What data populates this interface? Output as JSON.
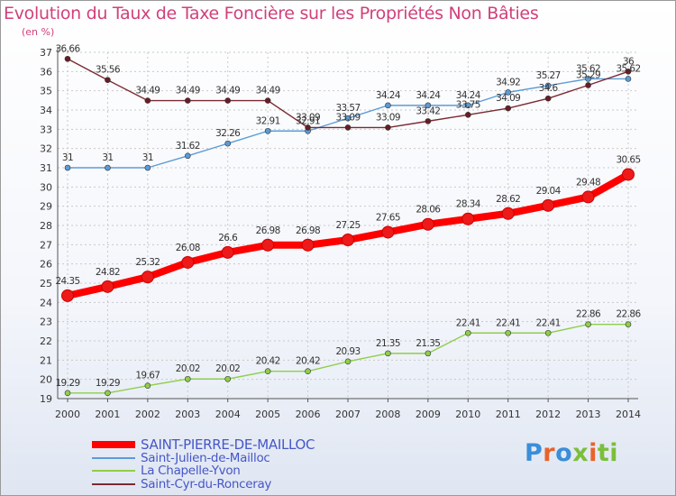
{
  "chart_data": {
    "type": "line",
    "title": "Evolution du Taux de Taxe Foncière sur les Propriétés Non Bâties",
    "unit_label": "(en %)",
    "x": [
      "2000",
      "2001",
      "2002",
      "2003",
      "2004",
      "2005",
      "2006",
      "2007",
      "2008",
      "2009",
      "2010",
      "2011",
      "2012",
      "2013",
      "2014"
    ],
    "yticks": [
      "19",
      "20",
      "21",
      "22",
      "23",
      "24",
      "25",
      "26",
      "27",
      "28",
      "29",
      "30",
      "31",
      "32",
      "33",
      "34",
      "35",
      "36",
      "37"
    ],
    "ylim": [
      19,
      37
    ],
    "grid": true,
    "series": [
      {
        "name": "SAINT-PIERRE-DE-MAILLOC",
        "color": "#ff0000",
        "values": [
          24.35,
          24.82,
          25.32,
          26.08,
          26.6,
          26.98,
          26.98,
          27.25,
          27.65,
          28.06,
          28.34,
          28.62,
          29.04,
          29.48,
          30.65
        ],
        "labels": [
          "24.35",
          "24.82",
          "25.32",
          "26.08",
          "26.6",
          "26.98",
          "26.98",
          "27.25",
          "27.65",
          "28.06",
          "28.34",
          "28.62",
          "29.04",
          "29.48",
          "30.65"
        ]
      },
      {
        "name": "Saint-Julien-de-Mailloc",
        "color": "#5b9bd5",
        "values": [
          31,
          31,
          31,
          31.62,
          32.26,
          32.91,
          32.91,
          33.57,
          34.24,
          34.24,
          34.24,
          34.92,
          35.27,
          35.62,
          35.62
        ],
        "labels": [
          "31",
          "31",
          "31",
          "31.62",
          "32.26",
          "32.91",
          "32.91",
          "33.57",
          "34.24",
          "34.24",
          "34.24",
          "34.92",
          "35.27",
          "35.62",
          "35.62"
        ]
      },
      {
        "name": "La Chapelle-Yvon",
        "color": "#8fce4a",
        "values": [
          19.29,
          19.29,
          19.67,
          20.02,
          20.02,
          20.42,
          20.42,
          20.93,
          21.35,
          21.35,
          22.41,
          22.41,
          22.41,
          22.86,
          22.86
        ],
        "labels": [
          "19.29",
          "19.29",
          "19.67",
          "20.02",
          "20.02",
          "20.42",
          "20.42",
          "20.93",
          "21.35",
          "21.35",
          "22.41",
          "22.41",
          "22.41",
          "22.86",
          "22.86"
        ]
      },
      {
        "name": "Saint-Cyr-du-Ronceray",
        "color": "#7a2a32",
        "values": [
          36.66,
          35.56,
          34.49,
          34.49,
          34.49,
          34.49,
          33.09,
          33.09,
          33.09,
          33.42,
          33.75,
          34.09,
          34.6,
          35.29,
          36
        ],
        "labels": [
          "36.66",
          "35.56",
          "34.49",
          "34.49",
          "34.49",
          "34.49",
          "33.09",
          "33.09",
          "33.09",
          "33.42",
          "33.75",
          "34.09",
          "34.6",
          "35.29",
          "36"
        ]
      }
    ]
  },
  "logo": {
    "letters": [
      "P",
      "r",
      "o",
      "x",
      "i",
      "ti"
    ]
  }
}
